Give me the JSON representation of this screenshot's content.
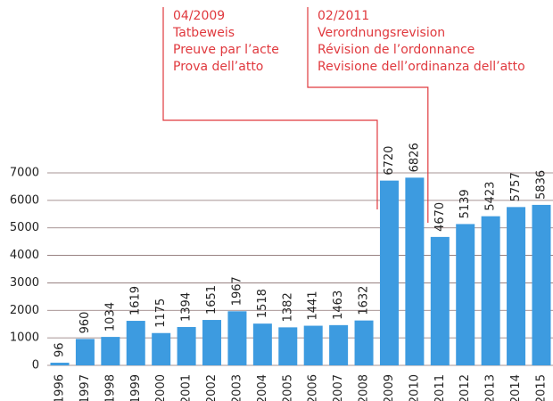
{
  "chart_data": {
    "type": "bar",
    "categories": [
      "1996",
      "1997",
      "1998",
      "1999",
      "2000",
      "2001",
      "2002",
      "2003",
      "2004",
      "2005",
      "2006",
      "2007",
      "2008",
      "2009",
      "2010",
      "2011",
      "2012",
      "2013",
      "2014",
      "2015"
    ],
    "values": [
      96,
      960,
      1034,
      1619,
      1175,
      1394,
      1651,
      1967,
      1518,
      1382,
      1441,
      1463,
      1632,
      6720,
      6826,
      4670,
      5139,
      5423,
      5757,
      5836
    ],
    "color": "#3d9be0",
    "ylim": [
      0,
      7000
    ],
    "yticks": [
      0,
      1000,
      2000,
      3000,
      4000,
      5000,
      6000,
      7000
    ],
    "grid": true,
    "annotations": [
      {
        "category": "2009",
        "lines": [
          "04/2009",
          "Tatbeweis",
          "Preuve par l’acte",
          "Prova dell’atto"
        ]
      },
      {
        "category": "2011",
        "lines": [
          "02/2011",
          "Verordnungsrevision",
          "Révision de l’ordonnance",
          "Revisione dell’ordinanza dell’atto"
        ]
      }
    ]
  }
}
